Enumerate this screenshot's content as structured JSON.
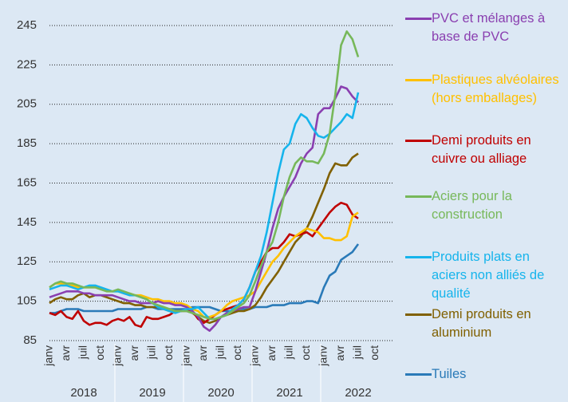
{
  "chart_data": {
    "type": "line",
    "categories": [
      "janv",
      null,
      null,
      "avr",
      null,
      null,
      "juil",
      null,
      null,
      "oct",
      null,
      null,
      "janv",
      null,
      null,
      "avr",
      null,
      null,
      "juil",
      null,
      null,
      "oct",
      null,
      null,
      "janv",
      null,
      null,
      "avr",
      null,
      null,
      "juil",
      null,
      null,
      "oct",
      null,
      null,
      "janv",
      null,
      null,
      "avr",
      null,
      null,
      "juil",
      null,
      null,
      "oct",
      null,
      null,
      "janv",
      null,
      null,
      "avr",
      null,
      null,
      "juil",
      null,
      null,
      "oct",
      null,
      null
    ],
    "years": [
      "2018",
      "2019",
      "2020",
      "2021",
      "2022"
    ],
    "ylim": [
      85,
      245
    ],
    "yticks": [
      85,
      105,
      125,
      145,
      165,
      185,
      205,
      225,
      245
    ],
    "grid": true,
    "series": [
      {
        "name": "PVC et mélanges à base de PVC",
        "color": "#8a3fb0",
        "values": [
          107,
          108,
          109,
          110,
          110,
          110,
          109,
          109,
          108,
          108,
          108,
          108,
          107,
          106,
          105,
          105,
          104,
          104,
          104,
          105,
          104,
          104,
          103,
          103,
          102,
          100,
          97,
          92,
          90,
          93,
          97,
          99,
          100,
          101,
          102,
          102,
          110,
          120,
          130,
          142,
          152,
          158,
          163,
          168,
          175,
          180,
          183,
          200,
          203,
          203,
          208,
          214,
          213,
          209,
          206,
          null,
          null,
          null,
          null,
          null
        ]
      },
      {
        "name": "Plastiques alvéolaires (hors emballages)",
        "color": "#ffc000",
        "values": [
          112,
          114,
          114,
          113,
          113,
          112,
          112,
          112,
          112,
          111,
          111,
          110,
          110,
          109,
          109,
          108,
          108,
          107,
          106,
          106,
          105,
          105,
          104,
          104,
          103,
          101,
          100,
          97,
          97,
          98,
          100,
          103,
          105,
          106,
          107,
          108,
          110,
          115,
          120,
          125,
          128,
          132,
          135,
          138,
          140,
          142,
          141,
          140,
          137,
          137,
          136,
          136,
          138,
          148,
          150,
          null,
          null,
          null,
          null,
          null
        ]
      },
      {
        "name": "Demi produits en cuivre ou alliage",
        "color": "#c00000",
        "values": [
          99,
          98,
          100,
          97,
          96,
          100,
          95,
          93,
          94,
          94,
          93,
          95,
          96,
          95,
          97,
          93,
          92,
          97,
          96,
          96,
          97,
          98,
          100,
          100,
          101,
          100,
          96,
          94,
          96,
          98,
          100,
          101,
          102,
          103,
          106,
          112,
          120,
          125,
          130,
          132,
          132,
          135,
          139,
          138,
          139,
          140,
          138,
          142,
          146,
          150,
          153,
          155,
          154,
          149,
          147,
          null,
          null,
          null,
          null,
          null
        ]
      },
      {
        "name": "Aciers pour la construction",
        "color": "#77b85a",
        "values": [
          112,
          114,
          115,
          114,
          114,
          113,
          112,
          112,
          112,
          111,
          110,
          110,
          111,
          110,
          109,
          108,
          107,
          106,
          104,
          103,
          102,
          101,
          100,
          100,
          100,
          99,
          98,
          97,
          96,
          96,
          97,
          98,
          100,
          102,
          104,
          108,
          115,
          123,
          130,
          135,
          145,
          158,
          168,
          175,
          178,
          176,
          176,
          175,
          180,
          190,
          210,
          235,
          242,
          238,
          229,
          null,
          null,
          null,
          null,
          null
        ]
      },
      {
        "name": "Produits plats en aciers non alliés de qualité",
        "color": "#16b4ec",
        "values": [
          111,
          112,
          113,
          113,
          112,
          111,
          112,
          113,
          113,
          112,
          111,
          110,
          110,
          109,
          108,
          108,
          107,
          106,
          104,
          102,
          101,
          100,
          99,
          100,
          101,
          101,
          102,
          99,
          96,
          96,
          97,
          98,
          101,
          103,
          106,
          112,
          120,
          128,
          140,
          155,
          170,
          182,
          185,
          195,
          200,
          198,
          193,
          189,
          188,
          190,
          193,
          196,
          200,
          198,
          211,
          null,
          null,
          null,
          null,
          null
        ]
      },
      {
        "name": "Demi produits en aluminium",
        "color": "#806000",
        "values": [
          104,
          106,
          107,
          106,
          106,
          108,
          109,
          107,
          108,
          108,
          107,
          106,
          105,
          104,
          104,
          103,
          103,
          102,
          102,
          102,
          101,
          100,
          100,
          100,
          100,
          99,
          97,
          95,
          94,
          95,
          97,
          98,
          99,
          100,
          100,
          101,
          103,
          107,
          112,
          116,
          120,
          125,
          130,
          135,
          138,
          142,
          148,
          155,
          162,
          170,
          175,
          174,
          174,
          178,
          180,
          null,
          null,
          null,
          null,
          null
        ]
      },
      {
        "name": "Tuiles",
        "color": "#2a7ab8",
        "values": [
          99,
          99,
          100,
          101,
          101,
          101,
          100,
          100,
          100,
          100,
          100,
          100,
          101,
          101,
          101,
          101,
          101,
          102,
          102,
          101,
          101,
          101,
          101,
          101,
          101,
          102,
          102,
          102,
          102,
          101,
          100,
          100,
          100,
          101,
          101,
          101,
          102,
          102,
          102,
          103,
          103,
          103,
          104,
          104,
          104,
          105,
          105,
          104,
          112,
          118,
          120,
          126,
          128,
          130,
          134,
          null,
          null,
          null,
          null,
          null
        ]
      }
    ]
  }
}
